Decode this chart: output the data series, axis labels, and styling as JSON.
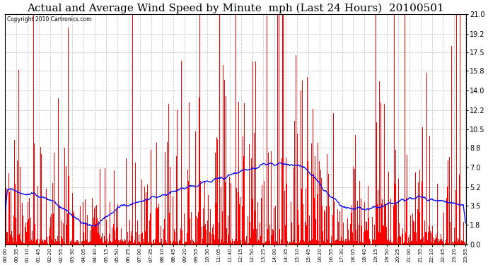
{
  "title": "Actual and Average Wind Speed by Minute  mph (Last 24 Hours)  20100501",
  "copyright_text": "Copyright 2010 Cartronics.com",
  "yticks": [
    0.0,
    1.8,
    3.5,
    5.2,
    7.0,
    8.8,
    10.5,
    12.2,
    14.0,
    15.8,
    17.5,
    19.2,
    21.0
  ],
  "ymax": 21.0,
  "ymin": 0.0,
  "bar_color": "#ff0000",
  "line_color": "#0000ff",
  "background_color": "#ffffff",
  "grid_color": "#c8c8c8",
  "title_fontsize": 11,
  "xtick_labels": [
    "00:00",
    "00:35",
    "01:10",
    "01:45",
    "02:20",
    "02:55",
    "03:30",
    "04:05",
    "04:40",
    "05:15",
    "05:50",
    "06:25",
    "07:00",
    "07:35",
    "08:10",
    "08:45",
    "09:20",
    "09:55",
    "10:30",
    "11:05",
    "11:40",
    "12:15",
    "12:50",
    "13:25",
    "14:00",
    "14:35",
    "15:10",
    "15:45",
    "16:20",
    "16:55",
    "17:30",
    "18:05",
    "18:40",
    "19:15",
    "19:50",
    "20:25",
    "21:00",
    "21:35",
    "22:10",
    "22:45",
    "23:20",
    "23:55"
  ]
}
